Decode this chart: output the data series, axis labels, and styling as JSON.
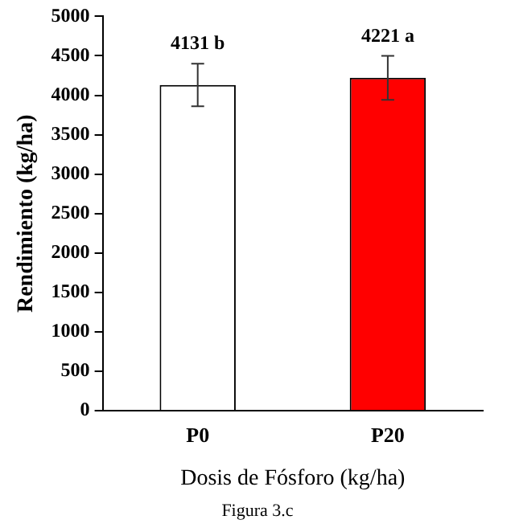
{
  "chart_data": {
    "type": "bar",
    "xlabel": "Dosis de Fósforo (kg/ha)",
    "ylabel": "Rendimiento (kg/ha)",
    "categories": [
      "P0",
      "P20"
    ],
    "values": [
      4131,
      4221
    ],
    "colors": [
      "#ffffff",
      "#ff0000"
    ],
    "errors": [
      270,
      280
    ],
    "value_labels": [
      "4131 b",
      "4221 a"
    ],
    "ylim": [
      0,
      5000
    ],
    "yticks": [
      0,
      500,
      1000,
      1500,
      2000,
      2500,
      3000,
      3500,
      4000,
      4500,
      5000
    ],
    "grid": false,
    "legend": false,
    "annotations": [
      "Figura 3.c"
    ]
  }
}
